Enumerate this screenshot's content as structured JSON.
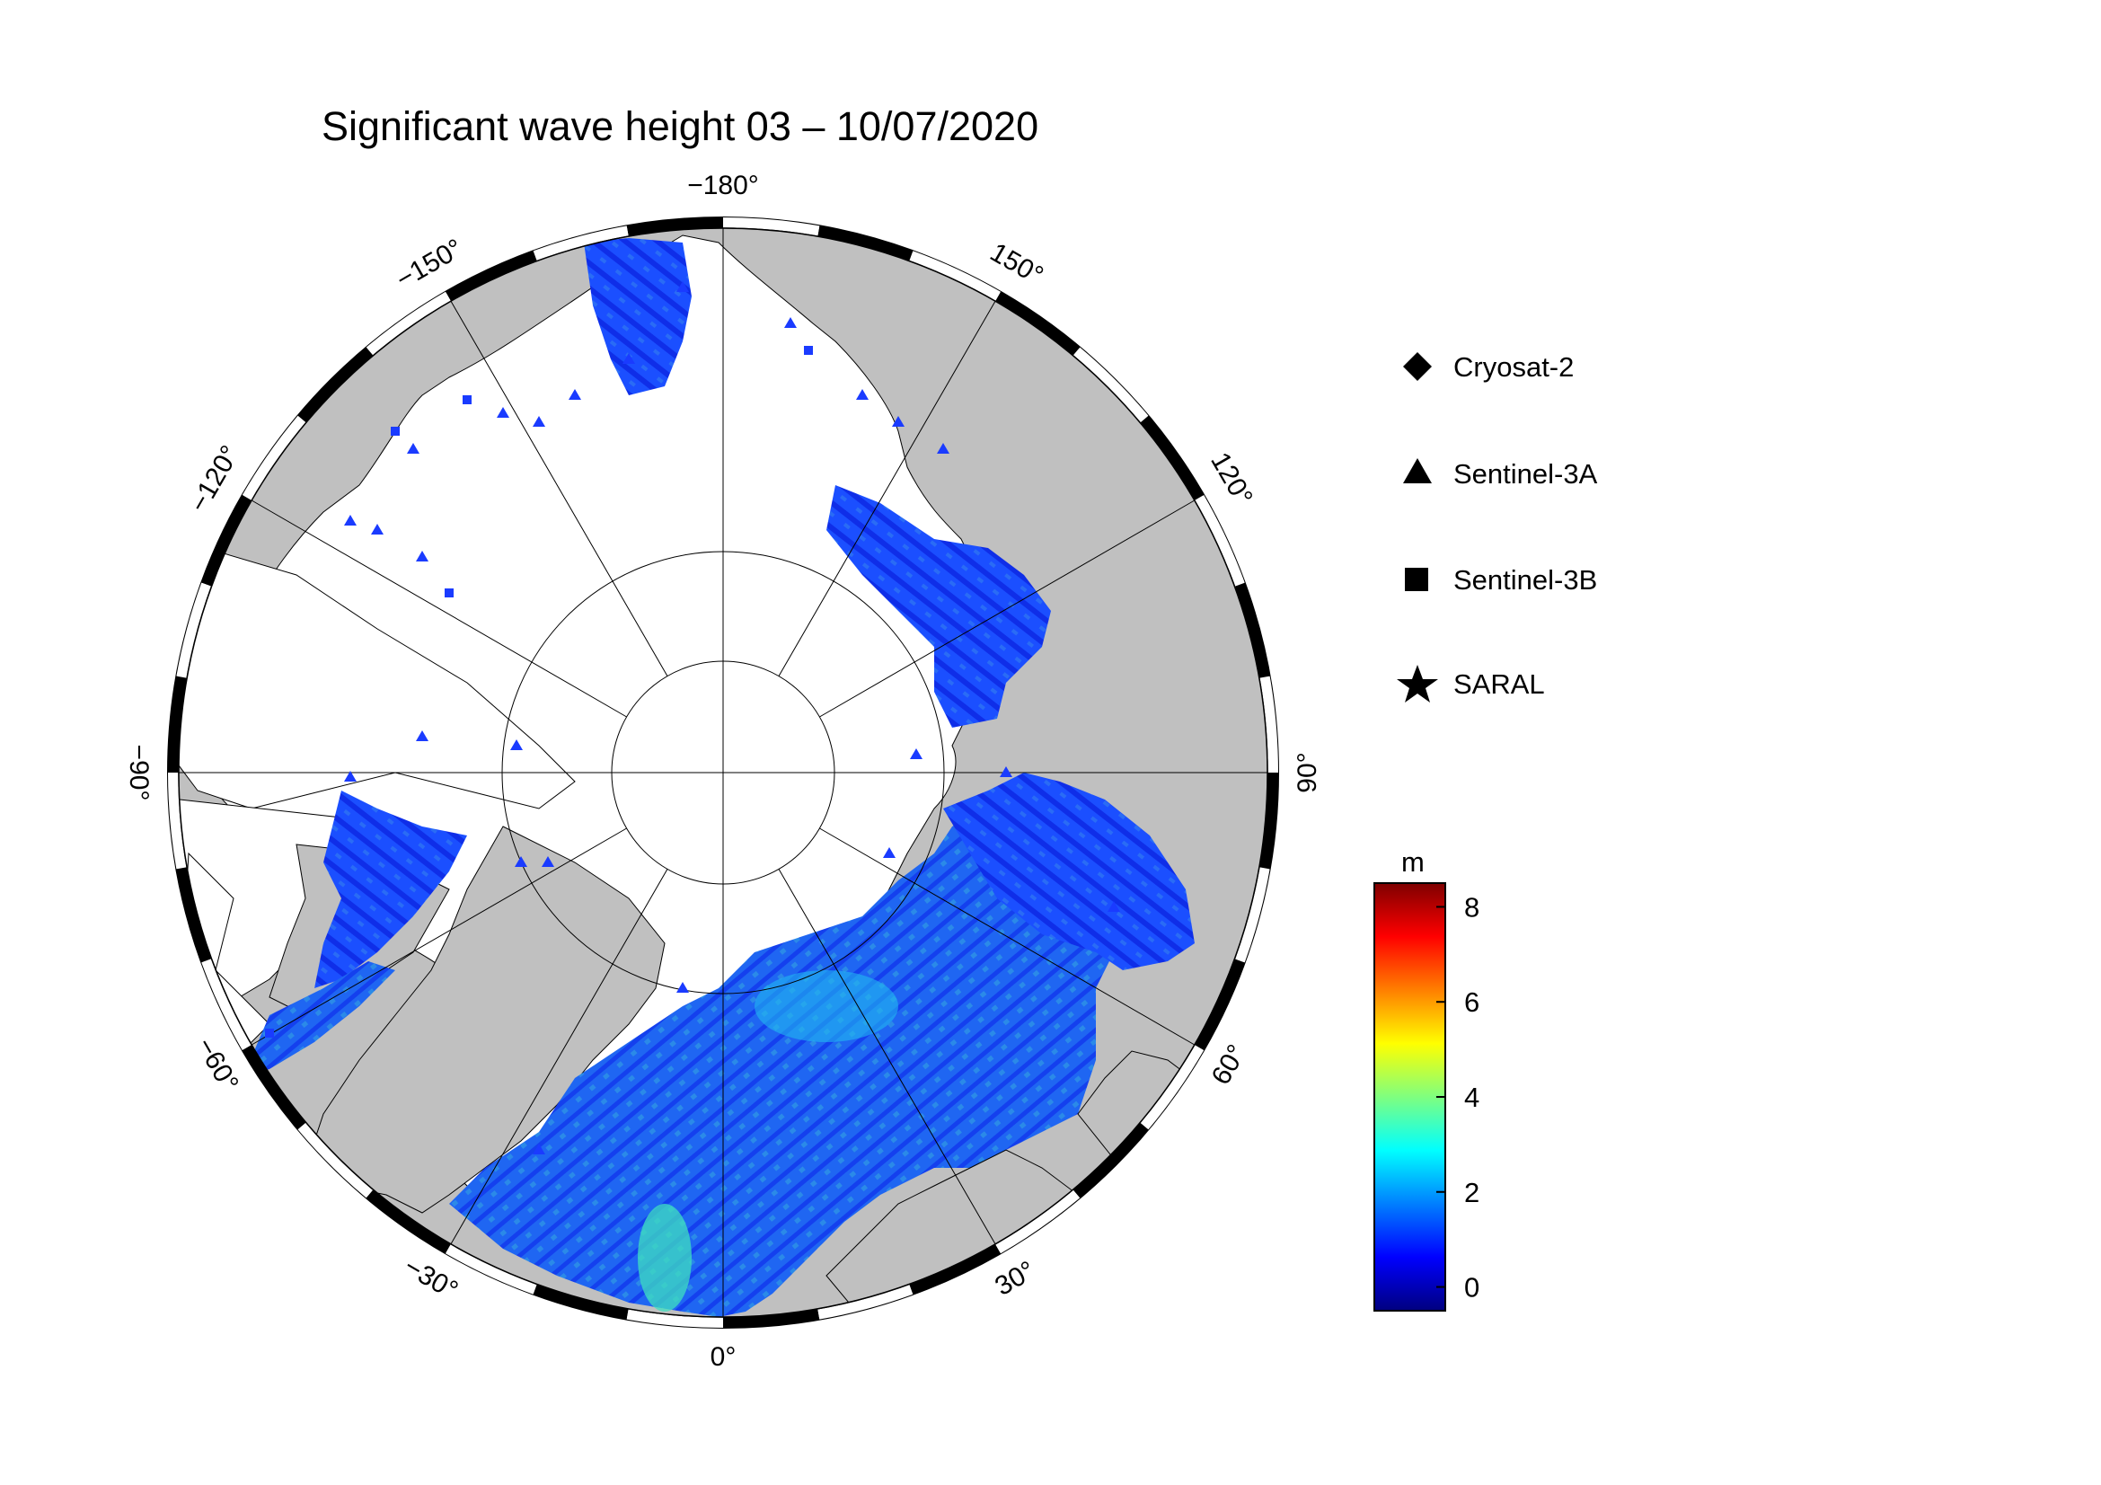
{
  "title": "Significant wave height 03 – 10/07/2020",
  "map": {
    "projection": "north-polar-stereographic",
    "land_color": "#c0c0c0",
    "ice_color": "#ffffff",
    "longitude_labels": [
      {
        "lon": -180,
        "text": "−180°"
      },
      {
        "lon": 150,
        "text": "150°"
      },
      {
        "lon": 120,
        "text": "120°"
      },
      {
        "lon": 90,
        "text": "90°"
      },
      {
        "lon": 60,
        "text": "60°"
      },
      {
        "lon": 30,
        "text": "30°"
      },
      {
        "lon": 0,
        "text": "0°"
      },
      {
        "lon": -30,
        "text": "−30°"
      },
      {
        "lon": -60,
        "text": "−60°"
      },
      {
        "lon": -90,
        "text": "−90°"
      },
      {
        "lon": -120,
        "text": "−120°"
      },
      {
        "lon": -150,
        "text": "−150°"
      }
    ]
  },
  "legend": {
    "items": [
      {
        "label": "Cryosat-2",
        "marker": "diamond"
      },
      {
        "label": "Sentinel-3A",
        "marker": "triangle"
      },
      {
        "label": "Sentinel-3B",
        "marker": "square"
      },
      {
        "label": "SARAL",
        "marker": "star"
      }
    ]
  },
  "colorbar": {
    "unit": "m",
    "min": -0.5,
    "max": 8.5,
    "ticks": [
      0,
      2,
      4,
      6,
      8
    ],
    "tick_labels": [
      "0",
      "2",
      "4",
      "6",
      "8"
    ],
    "colors": [
      "#00007f",
      "#0000ff",
      "#007fff",
      "#00ffff",
      "#7fff7f",
      "#ffff00",
      "#ff7f00",
      "#ff0000",
      "#7f0000"
    ]
  }
}
